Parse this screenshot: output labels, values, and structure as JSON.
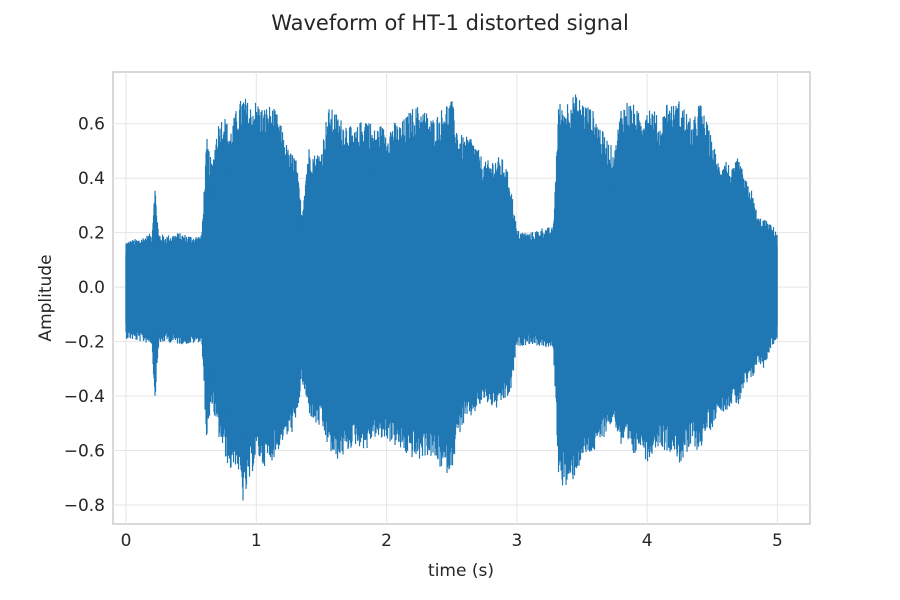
{
  "chart_data": {
    "type": "line",
    "title": "Waveform of HT-1 distorted signal",
    "xlabel": "time (s)",
    "ylabel": "Amplitude",
    "xlim": [
      -0.1,
      5.25
    ],
    "ylim": [
      -0.87,
      0.79
    ],
    "xticks": [
      0,
      1,
      2,
      3,
      4,
      5
    ],
    "xtick_labels": [
      "0",
      "1",
      "2",
      "3",
      "4",
      "5"
    ],
    "yticks": [
      -0.8,
      -0.6,
      -0.4,
      -0.2,
      0.0,
      0.2,
      0.4,
      0.6
    ],
    "ytick_labels": [
      "−0.8",
      "−0.6",
      "−0.4",
      "−0.2",
      "0.0",
      "0.2",
      "0.4",
      "0.6"
    ],
    "grid": true,
    "color": "#1f77b4",
    "series": [
      {
        "x": [
          0.0,
          0.1,
          0.2,
          0.22,
          0.25,
          0.3,
          0.4,
          0.5,
          0.58,
          0.62,
          0.66,
          0.7,
          0.75,
          0.8,
          0.85,
          0.9,
          0.95,
          1.0,
          1.05,
          1.1,
          1.15,
          1.2,
          1.25,
          1.3,
          1.35,
          1.4,
          1.45,
          1.5,
          1.55,
          1.6,
          1.65,
          1.7,
          1.75,
          1.8,
          1.85,
          1.9,
          1.95,
          2.0,
          2.05,
          2.1,
          2.15,
          2.2,
          2.25,
          2.3,
          2.35,
          2.4,
          2.45,
          2.5,
          2.55,
          2.6,
          2.65,
          2.7,
          2.75,
          2.8,
          2.85,
          2.9,
          2.95,
          3.0,
          3.1,
          3.2,
          3.28,
          3.32,
          3.35,
          3.4,
          3.45,
          3.5,
          3.55,
          3.6,
          3.65,
          3.7,
          3.75,
          3.8,
          3.85,
          3.9,
          3.95,
          4.0,
          4.05,
          4.1,
          4.15,
          4.2,
          4.25,
          4.3,
          4.35,
          4.4,
          4.45,
          4.5,
          4.55,
          4.6,
          4.65,
          4.7,
          4.75,
          4.8,
          4.85,
          4.9,
          4.95,
          5.0
        ],
        "y_max": [
          0.17,
          0.18,
          0.2,
          0.39,
          0.2,
          0.19,
          0.2,
          0.19,
          0.19,
          0.55,
          0.45,
          0.6,
          0.64,
          0.58,
          0.66,
          0.71,
          0.67,
          0.69,
          0.66,
          0.67,
          0.65,
          0.58,
          0.5,
          0.49,
          0.28,
          0.52,
          0.49,
          0.51,
          0.66,
          0.65,
          0.62,
          0.61,
          0.57,
          0.61,
          0.64,
          0.58,
          0.6,
          0.58,
          0.61,
          0.6,
          0.63,
          0.66,
          0.67,
          0.65,
          0.62,
          0.64,
          0.68,
          0.69,
          0.57,
          0.55,
          0.56,
          0.51,
          0.46,
          0.47,
          0.48,
          0.47,
          0.39,
          0.21,
          0.2,
          0.22,
          0.22,
          0.69,
          0.66,
          0.7,
          0.71,
          0.69,
          0.67,
          0.64,
          0.58,
          0.54,
          0.5,
          0.67,
          0.69,
          0.67,
          0.63,
          0.68,
          0.66,
          0.6,
          0.69,
          0.67,
          0.69,
          0.65,
          0.6,
          0.69,
          0.62,
          0.54,
          0.46,
          0.48,
          0.43,
          0.48,
          0.4,
          0.36,
          0.26,
          0.25,
          0.23,
          0.21
        ],
        "y_min": [
          -0.19,
          -0.2,
          -0.21,
          -0.43,
          -0.22,
          -0.2,
          -0.21,
          -0.21,
          -0.2,
          -0.58,
          -0.43,
          -0.54,
          -0.61,
          -0.68,
          -0.65,
          -0.8,
          -0.72,
          -0.62,
          -0.66,
          -0.65,
          -0.62,
          -0.57,
          -0.55,
          -0.52,
          -0.35,
          -0.46,
          -0.51,
          -0.52,
          -0.59,
          -0.64,
          -0.63,
          -0.61,
          -0.58,
          -0.59,
          -0.6,
          -0.55,
          -0.57,
          -0.56,
          -0.58,
          -0.6,
          -0.62,
          -0.63,
          -0.64,
          -0.62,
          -0.63,
          -0.66,
          -0.69,
          -0.67,
          -0.55,
          -0.5,
          -0.48,
          -0.45,
          -0.42,
          -0.44,
          -0.45,
          -0.42,
          -0.4,
          -0.22,
          -0.21,
          -0.22,
          -0.23,
          -0.69,
          -0.73,
          -0.75,
          -0.69,
          -0.64,
          -0.62,
          -0.61,
          -0.57,
          -0.52,
          -0.5,
          -0.59,
          -0.6,
          -0.63,
          -0.58,
          -0.65,
          -0.6,
          -0.58,
          -0.61,
          -0.6,
          -0.65,
          -0.63,
          -0.58,
          -0.61,
          -0.54,
          -0.52,
          -0.45,
          -0.46,
          -0.43,
          -0.44,
          -0.37,
          -0.35,
          -0.28,
          -0.3,
          -0.22,
          -0.2
        ]
      }
    ]
  }
}
